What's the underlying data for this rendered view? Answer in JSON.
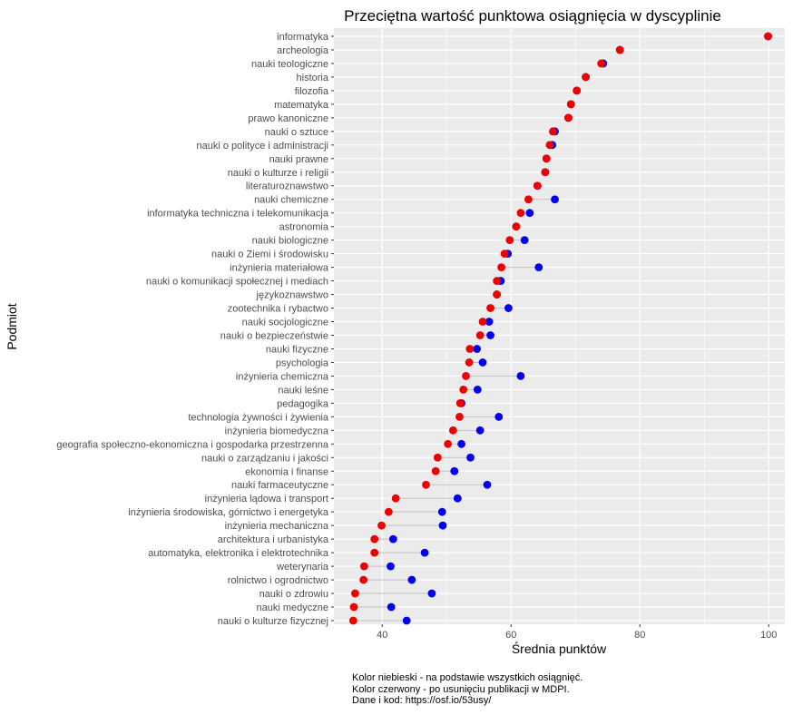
{
  "chart_data": {
    "type": "dumbbell",
    "title": "Przeciętna wartość punktowa osiągnięcia w dyscyplinie",
    "xlabel": "Średnia punktów",
    "ylabel": "Podmiot",
    "xlim": [
      32.5,
      102.5
    ],
    "x_ticks": [
      40,
      60,
      80,
      100
    ],
    "grid": true,
    "colors": {
      "blue": "#0000ee",
      "red": "#ee0000",
      "segment": "#bebebe",
      "panel": "#ebebeb",
      "grid": "#ffffff"
    },
    "series": [
      {
        "name": "wszystkie osiągnięcia",
        "color": "blue",
        "values": [
          99.9,
          76.9,
          74.3,
          71.6,
          70.2,
          69.3,
          68.9,
          66.8,
          66.4,
          65.5,
          65.3,
          64.1,
          66.8,
          62.9,
          60.8,
          62.1,
          59.5,
          64.3,
          58.4,
          57.8,
          59.6,
          56.6,
          56.8,
          54.7,
          55.6,
          61.5,
          54.8,
          52.3,
          58.1,
          55.2,
          52.3,
          53.7,
          51.2,
          56.3,
          51.7,
          49.3,
          49.4,
          41.7,
          46.6,
          41.3,
          44.6,
          47.7,
          41.4,
          43.8
        ]
      },
      {
        "name": "po usunięciu publikacji w MDPI",
        "color": "red",
        "values": [
          99.9,
          76.9,
          74.0,
          71.6,
          70.2,
          69.3,
          68.9,
          66.5,
          66.0,
          65.5,
          65.3,
          64.1,
          62.7,
          61.5,
          60.8,
          59.8,
          59.0,
          58.5,
          57.8,
          57.8,
          56.8,
          55.6,
          55.2,
          53.6,
          53.5,
          53.0,
          52.6,
          52.1,
          52.0,
          51.0,
          50.2,
          48.6,
          48.3,
          46.8,
          42.1,
          41.0,
          39.9,
          38.8,
          38.8,
          37.2,
          37.1,
          35.8,
          35.6,
          35.5
        ]
      }
    ],
    "categories": [
      "informatyka",
      "archeologia",
      "nauki teologiczne",
      "historia",
      "filozofia",
      "matematyka",
      "prawo kanoniczne",
      "nauki o sztuce",
      "nauki o polityce i administracji",
      "nauki prawne",
      "nauki o kulturze i religii",
      "literaturoznawstwo",
      "nauki chemiczne",
      "informatyka techniczna i telekomunikacja",
      "astronomia",
      "nauki biologiczne",
      "nauki o Ziemi i środowisku",
      "inżynieria materiałowa",
      "nauki o komunikacji społecznej i mediach",
      "językoznawstwo",
      "zootechnika i rybactwo",
      "nauki socjologiczne",
      "nauki o bezpieczeństwie",
      "nauki fizyczne",
      "psychologia",
      "inżynieria chemiczna",
      "nauki leśne",
      "pedagogika",
      "technologia żywności i żywienia",
      "inżynieria biomedyczna",
      "geografia społeczno-ekonomiczna i gospodarka przestrzenna",
      "nauki o zarządzaniu i jakości",
      "ekonomia i finanse",
      "nauki farmaceutyczne",
      "inżynieria lądowa i transport",
      "inżynieria środowiska, górnictwo i energetyka",
      "inżynieria mechaniczna",
      "architektura i urbanistyka",
      "automatyka, elektronika i elektrotechnika",
      "weterynaria",
      "rolnictwo i ogrodnictwo",
      "nauki o zdrowiu",
      "nauki medyczne",
      "nauki o kulturze fizycznej"
    ]
  },
  "caption": {
    "line1": "Kolor niebieski - na podstawie wszystkich osiągnięć.",
    "line2": "Kolor czerwony - po usunięciu publikacji w MDPI.",
    "line3": "Dane i kod: https://osf.io/53usy/"
  }
}
